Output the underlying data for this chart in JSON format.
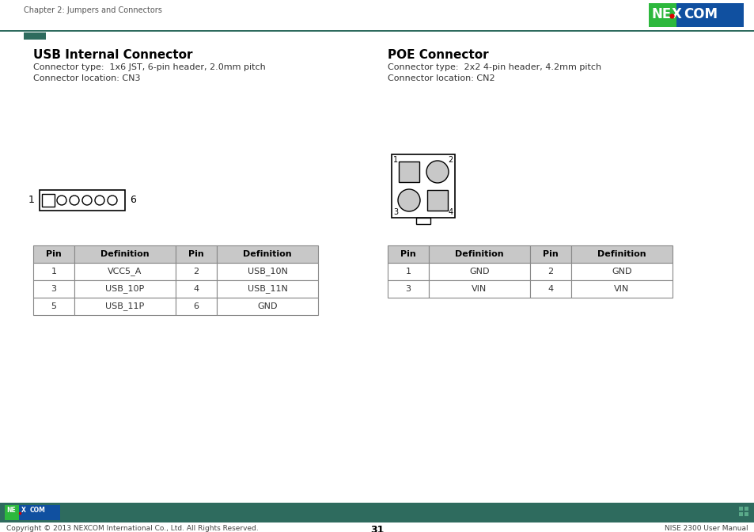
{
  "page_title": "Chapter 2: Jumpers and Connectors",
  "page_num": "31",
  "footer_right": "NISE 2300 User Manual",
  "footer_left": "Copyright © 2013 NEXCOM International Co., Ltd. All Rights Reserved.",
  "header_line_color": "#2e6b5e",
  "usb_title": "USB Internal Connector",
  "usb_type": "Connector type:  1x6 JST, 6-pin header, 2.0mm pitch",
  "usb_location": "Connector location: CN3",
  "poe_title": "POE Connector",
  "poe_type": "Connector type:  2x2 4-pin header, 4.2mm pitch",
  "poe_location": "Connector location: CN2",
  "usb_table_headers": [
    "Pin",
    "Definition",
    "Pin",
    "Definition"
  ],
  "usb_table_data": [
    [
      "1",
      "VCC5_A",
      "2",
      "USB_10N"
    ],
    [
      "3",
      "USB_10P",
      "4",
      "USB_11N"
    ],
    [
      "5",
      "USB_11P",
      "6",
      "GND"
    ]
  ],
  "poe_table_headers": [
    "Pin",
    "Definition",
    "Pin",
    "Definition"
  ],
  "poe_table_data": [
    [
      "1",
      "GND",
      "2",
      "GND"
    ],
    [
      "3",
      "VIN",
      "4",
      "VIN"
    ]
  ],
  "bg_color": "#ffffff",
  "table_header_bg": "#c8c8c8",
  "table_border_color": "#888888",
  "footer_bar_color": "#2e6b5e",
  "nexcom_green": "#2db83d",
  "nexcom_blue": "#1050a0"
}
